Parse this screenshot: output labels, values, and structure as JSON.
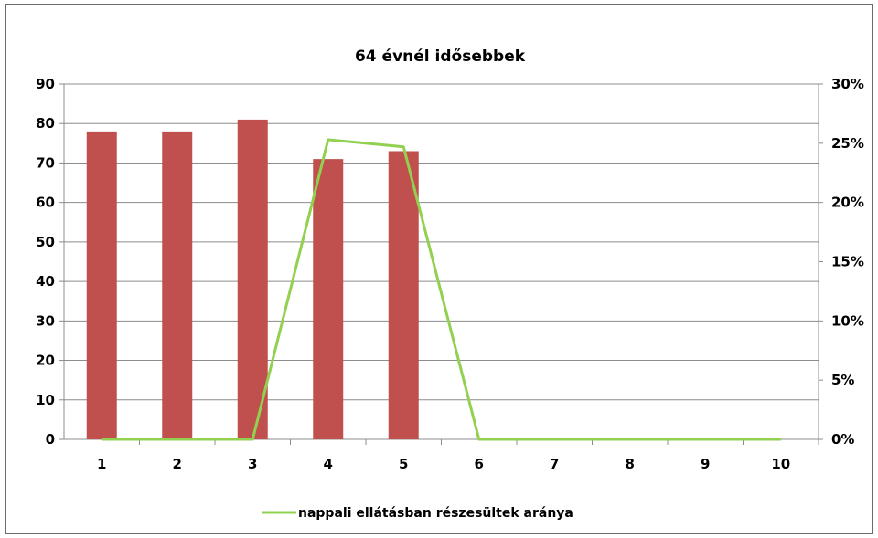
{
  "chart_data": {
    "type": "bar",
    "title": "64 évnél idősebbek",
    "xlabel": "",
    "ylabel": "",
    "categories": [
      "1",
      "2",
      "3",
      "4",
      "5",
      "6",
      "7",
      "8",
      "9",
      "10"
    ],
    "series": [
      {
        "type": "bar",
        "axis": "left",
        "color": "#c0504d",
        "values": [
          78,
          78,
          81,
          71,
          73,
          null,
          null,
          null,
          null,
          null
        ]
      },
      {
        "name": "nappali ellátásban részesültek aránya",
        "type": "line",
        "axis": "right",
        "color": "#92d050",
        "values": [
          0,
          0,
          0,
          0.253,
          0.247,
          0,
          0,
          0,
          0,
          0
        ]
      }
    ],
    "ylim": [
      0,
      90
    ],
    "y_ticks": [
      "0",
      "10",
      "20",
      "30",
      "40",
      "50",
      "60",
      "70",
      "80",
      "90"
    ],
    "y2lim": [
      0,
      0.3
    ],
    "y2_ticks": [
      "0%",
      "5%",
      "10%",
      "15%",
      "20%",
      "25%",
      "30%"
    ],
    "grid": true,
    "legend_position": "bottom"
  }
}
